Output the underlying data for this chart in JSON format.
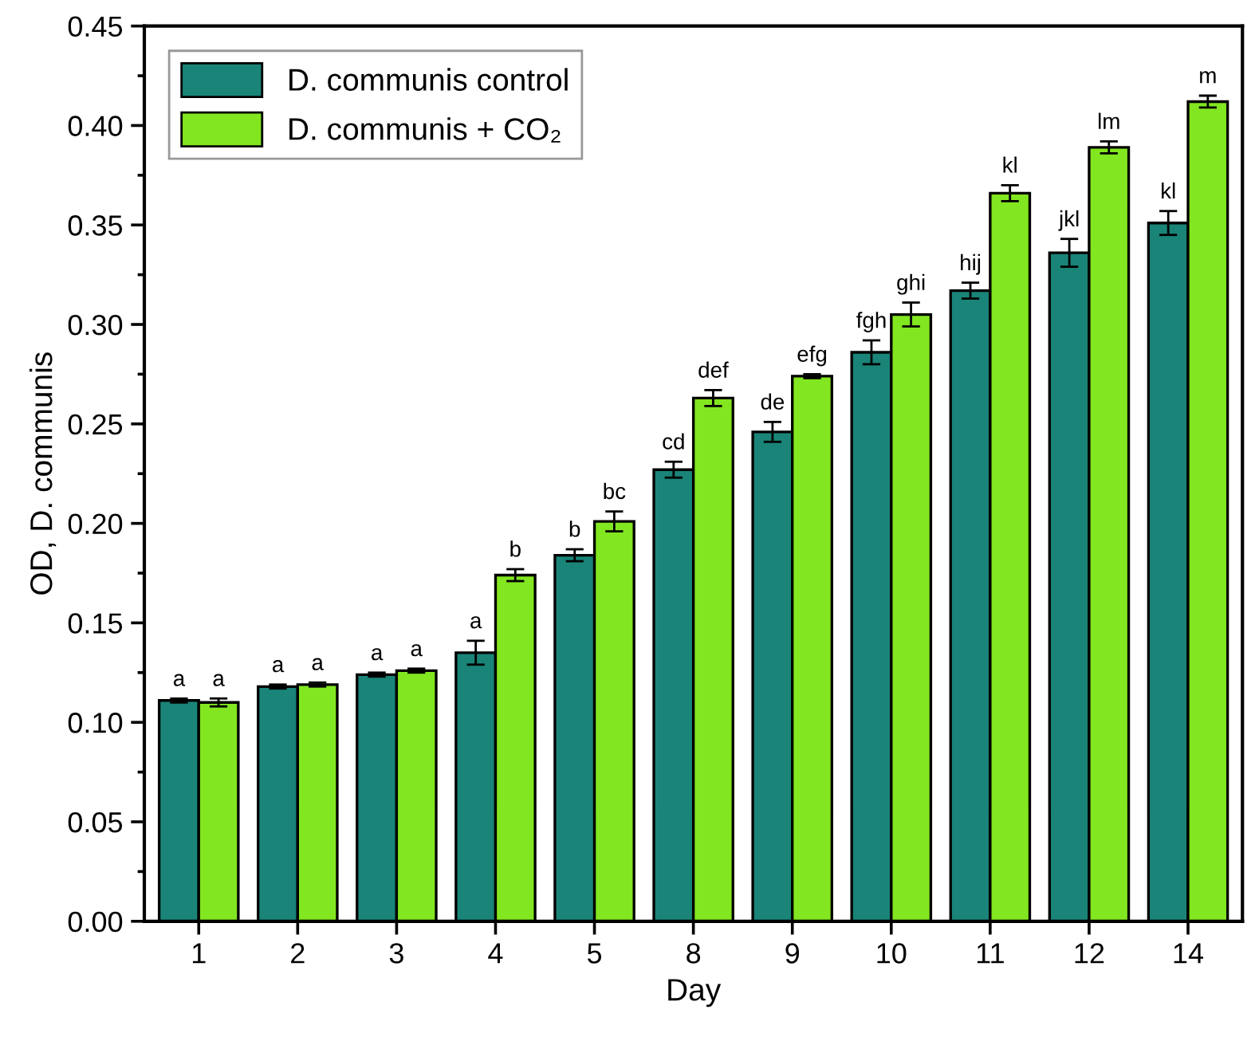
{
  "chart_data": {
    "type": "bar",
    "xlabel": "Day",
    "ylabel": "OD, D. communis",
    "categories": [
      "1",
      "2",
      "3",
      "4",
      "5",
      "8",
      "9",
      "10",
      "11",
      "12",
      "14"
    ],
    "series": [
      {
        "name": "D. communis control",
        "color": "#1a8478",
        "values": [
          0.111,
          0.118,
          0.124,
          0.135,
          0.184,
          0.227,
          0.246,
          0.286,
          0.317,
          0.336,
          0.351
        ],
        "errors": [
          0.001,
          0.001,
          0.001,
          0.006,
          0.003,
          0.004,
          0.005,
          0.006,
          0.004,
          0.007,
          0.006
        ],
        "value_labels": [
          "a",
          "a",
          "a",
          "a",
          "b",
          "cd",
          "de",
          "fgh",
          "hij",
          "jkl",
          "kl"
        ]
      },
      {
        "name": "D. communis + CO₂",
        "color": "#82e620",
        "values": [
          0.11,
          0.119,
          0.126,
          0.174,
          0.201,
          0.263,
          0.274,
          0.305,
          0.366,
          0.389,
          0.412
        ],
        "errors": [
          0.002,
          0.001,
          0.001,
          0.003,
          0.005,
          0.004,
          0.001,
          0.006,
          0.004,
          0.003,
          0.003
        ],
        "value_labels": [
          "a",
          "a",
          "a",
          "b",
          "bc",
          "def",
          "efg",
          "ghi",
          "kl",
          "lm",
          "m"
        ]
      }
    ],
    "ylim": [
      0,
      0.45
    ],
    "yticks": [
      {
        "value": 0,
        "label": "0.00"
      },
      {
        "value": 0.05,
        "label": "0.05"
      },
      {
        "value": 0.1,
        "label": "0.10"
      },
      {
        "value": 0.15,
        "label": "0.15"
      },
      {
        "value": 0.2,
        "label": "0.20"
      },
      {
        "value": 0.25,
        "label": "0.25"
      },
      {
        "value": 0.3,
        "label": "0.30"
      },
      {
        "value": 0.35,
        "label": "0.35"
      },
      {
        "value": 0.4,
        "label": "0.40"
      },
      {
        "value": 0.45,
        "label": "0.45"
      }
    ],
    "grid": false,
    "legend": "top left"
  }
}
